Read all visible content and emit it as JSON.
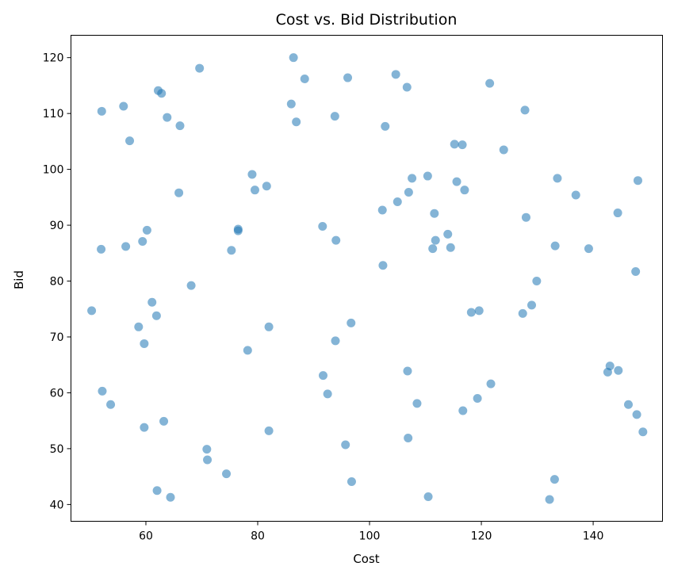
{
  "chart_data": {
    "type": "scatter",
    "title": "Cost vs. Bid Distribution",
    "xlabel": "Cost",
    "ylabel": "Bid",
    "xlim": [
      46.6,
      152.4
    ],
    "ylim": [
      37.0,
      124.0
    ],
    "xticks": [
      60,
      80,
      100,
      120,
      140
    ],
    "yticks": [
      40,
      50,
      60,
      70,
      80,
      90,
      100,
      110,
      120
    ],
    "grid": false,
    "marker_color": "#1f77b4",
    "marker_alpha": 0.55,
    "x": [
      50.3,
      52.0,
      52.1,
      52.2,
      53.7,
      56.0,
      56.4,
      57.1,
      58.7,
      59.4,
      59.7,
      59.7,
      60.2,
      61.1,
      61.9,
      62.0,
      62.2,
      62.8,
      63.2,
      63.8,
      64.4,
      65.9,
      66.1,
      68.1,
      69.6,
      70.9,
      71.0,
      74.4,
      75.3,
      76.5,
      76.5,
      78.2,
      79.0,
      79.5,
      81.6,
      82.0,
      82.0,
      86.0,
      86.4,
      86.9,
      88.4,
      91.6,
      91.7,
      92.5,
      93.8,
      93.9,
      94.0,
      95.7,
      96.1,
      96.7,
      96.8,
      102.3,
      102.4,
      102.8,
      104.7,
      105.0,
      106.7,
      106.8,
      106.9,
      107.0,
      107.6,
      108.5,
      110.4,
      110.5,
      111.3,
      111.6,
      111.8,
      114.0,
      114.5,
      115.2,
      115.6,
      116.6,
      116.7,
      117.0,
      118.2,
      119.3,
      119.6,
      121.5,
      121.7,
      124.0,
      127.4,
      127.8,
      128.0,
      129.0,
      129.9,
      132.2,
      133.1,
      133.2,
      133.6,
      136.9,
      139.2,
      142.6,
      143.0,
      144.4,
      144.5,
      146.3,
      147.6,
      147.8,
      148.0,
      148.9
    ],
    "y": [
      74.7,
      85.7,
      110.4,
      60.3,
      57.9,
      111.3,
      86.2,
      105.1,
      71.8,
      87.1,
      53.8,
      68.8,
      89.1,
      76.2,
      73.8,
      42.5,
      114.1,
      113.6,
      54.9,
      109.3,
      41.3,
      95.8,
      107.8,
      79.2,
      118.1,
      49.9,
      48.0,
      45.5,
      85.5,
      89.0,
      89.3,
      67.6,
      99.1,
      96.3,
      97.0,
      53.2,
      71.8,
      111.7,
      120.0,
      108.5,
      116.2,
      89.8,
      63.1,
      59.8,
      109.5,
      69.3,
      87.3,
      50.7,
      116.4,
      72.5,
      44.1,
      92.7,
      82.8,
      107.7,
      117.0,
      94.2,
      114.7,
      63.9,
      51.9,
      95.9,
      98.4,
      58.1,
      98.8,
      41.4,
      85.8,
      92.1,
      87.3,
      88.4,
      86.0,
      104.5,
      97.8,
      104.4,
      56.8,
      96.3,
      74.4,
      59.0,
      74.7,
      115.4,
      61.6,
      103.5,
      74.2,
      110.6,
      91.4,
      75.7,
      80.0,
      40.9,
      44.5,
      86.3,
      98.4,
      95.4,
      85.8,
      63.7,
      64.8,
      92.2,
      64.0,
      57.9,
      81.7,
      56.1,
      98.0,
      53.0
    ]
  }
}
